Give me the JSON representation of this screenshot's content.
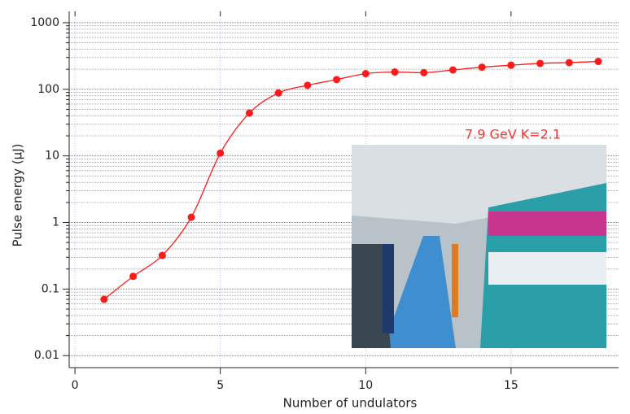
{
  "chart_data": {
    "type": "line",
    "x_label": "Number of undulators",
    "y_label": "Pulse energy (μJ)",
    "annotation": "7.9 GeV K=2.1",
    "annotation_color": "#ff3030",
    "log_y": true,
    "grid": true,
    "minor_grid": true,
    "grid_color": "#7070ff",
    "xlim": [
      -0.2,
      18.7
    ],
    "xticks": [
      0,
      5,
      10,
      15
    ],
    "ylim": [
      0.0066,
      1480
    ],
    "yticks": [
      0.01,
      0.1,
      1,
      10,
      100,
      1000
    ],
    "x": [
      1,
      2,
      3,
      4,
      5,
      6,
      7,
      8,
      9,
      10,
      11,
      12,
      13,
      14,
      15,
      16,
      17,
      18
    ],
    "series": [
      {
        "name": "Pulse energy",
        "color": "#ff1a1a",
        "values": [
          0.07,
          0.155,
          0.32,
          1.2,
          11,
          44,
          88,
          115,
          140,
          172,
          182,
          178,
          195,
          215,
          230,
          245,
          252,
          262
        ]
      }
    ]
  }
}
